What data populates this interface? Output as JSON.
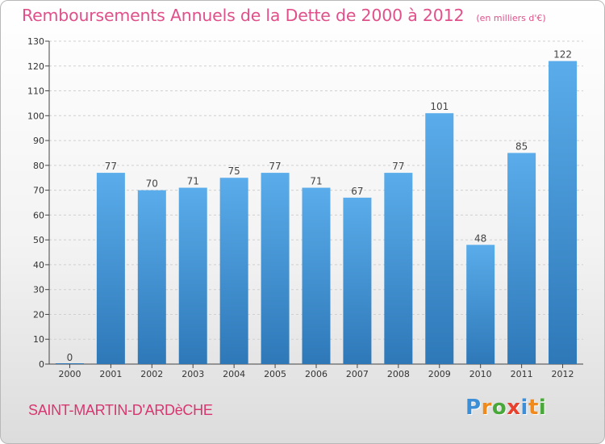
{
  "title": "Remboursements Annuels de la Dette de 2000 à 2012",
  "subtitle": "(en milliers d'€)",
  "commune": "SAINT-MARTIN-D'ARDèCHE",
  "logo": {
    "text": "Proxiti",
    "letters": [
      {
        "char": "P",
        "color": "#3c8fd6"
      },
      {
        "char": "r",
        "color": "#f08a1c"
      },
      {
        "char": "o",
        "color": "#49a83a"
      },
      {
        "char": "x",
        "color": "#e8412e"
      },
      {
        "char": "i",
        "color": "#3c8fd6"
      },
      {
        "char": "t",
        "color": "#f08a1c"
      },
      {
        "char": "i",
        "color": "#49a83a"
      }
    ]
  },
  "colors": {
    "title": "#e0508a",
    "bar_light": "#5aacea",
    "bar_dark": "#2e78b8",
    "axis": "#444444",
    "grid": "#d0d0d0"
  },
  "chart_data": {
    "type": "bar",
    "categories": [
      "2000",
      "2001",
      "2002",
      "2003",
      "2004",
      "2005",
      "2006",
      "2007",
      "2008",
      "2009",
      "2010",
      "2011",
      "2012"
    ],
    "values": [
      0,
      77,
      70,
      71,
      75,
      77,
      71,
      67,
      77,
      101,
      48,
      85,
      122
    ],
    "ylim": [
      0,
      130
    ],
    "yticks": [
      0,
      10,
      20,
      30,
      40,
      50,
      60,
      70,
      80,
      90,
      100,
      110,
      120,
      130
    ],
    "grid": true,
    "data_labels": true
  }
}
